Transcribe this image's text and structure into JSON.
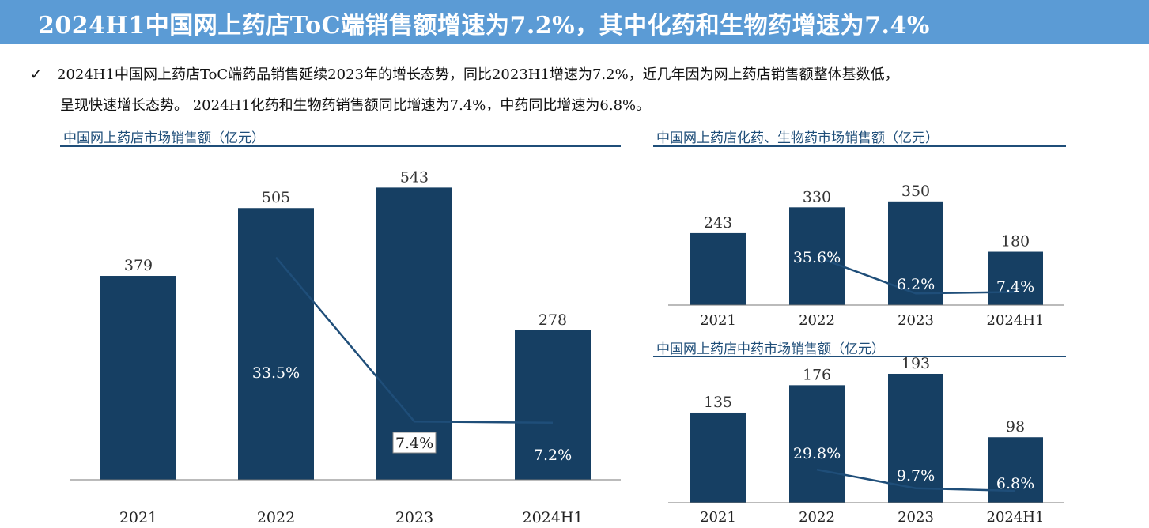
{
  "header": {
    "title": "2024H1中国网上药店ToC端销售额增速为7.2%，其中化药和生物药增速为7.4%"
  },
  "bullet": {
    "icon": "checkmark-icon",
    "line1": "2024H1中国网上药店ToC端药品销售延续2023年的增长态势，同比2023H1增速为7.2%，近几年因为网上药店销售额整体基数低，",
    "line2": "呈现快速增长态势。 2024H1化药和生物药销售额同比增速为7.4%，中药同比增速为6.8%。"
  },
  "colors": {
    "bar": "#163f63",
    "title_bar": "#5b9bd5",
    "rule": "#1f4e79",
    "line": "#1f4e79"
  },
  "chart_data": [
    {
      "type": "bar",
      "title": "中国网上药店市场销售额（亿元）",
      "categories": [
        "2021",
        "2022",
        "2023",
        "2024H1"
      ],
      "values": [
        379,
        505,
        543,
        278
      ],
      "value_labels": [
        "379",
        "505",
        "543",
        "278"
      ],
      "growth_rates": [
        null,
        33.5,
        7.4,
        7.2
      ],
      "growth_labels": [
        "",
        "33.5%",
        "7.4%",
        "7.2%"
      ],
      "ylim": [
        0,
        600
      ]
    },
    {
      "type": "bar",
      "title": "中国网上药店化药、生物药市场销售额（亿元）",
      "categories": [
        "2021",
        "2022",
        "2023",
        "2024H1"
      ],
      "values": [
        243,
        330,
        350,
        180
      ],
      "value_labels": [
        "243",
        "330",
        "350",
        "180"
      ],
      "growth_rates": [
        null,
        35.6,
        6.2,
        7.4
      ],
      "growth_labels": [
        "",
        "35.6%",
        "6.2%",
        "7.4%"
      ],
      "ylim": [
        0,
        400
      ]
    },
    {
      "type": "bar",
      "title": "中国网上药店中药市场销售额（亿元）",
      "categories": [
        "2021",
        "2022",
        "2023",
        "2024H1"
      ],
      "values": [
        135,
        176,
        193,
        98
      ],
      "value_labels": [
        "135",
        "176",
        "193",
        "98"
      ],
      "growth_rates": [
        null,
        29.8,
        9.7,
        6.8
      ],
      "growth_labels": [
        "",
        "29.8%",
        "9.7%",
        "6.8%"
      ],
      "ylim": [
        0,
        220
      ]
    }
  ]
}
